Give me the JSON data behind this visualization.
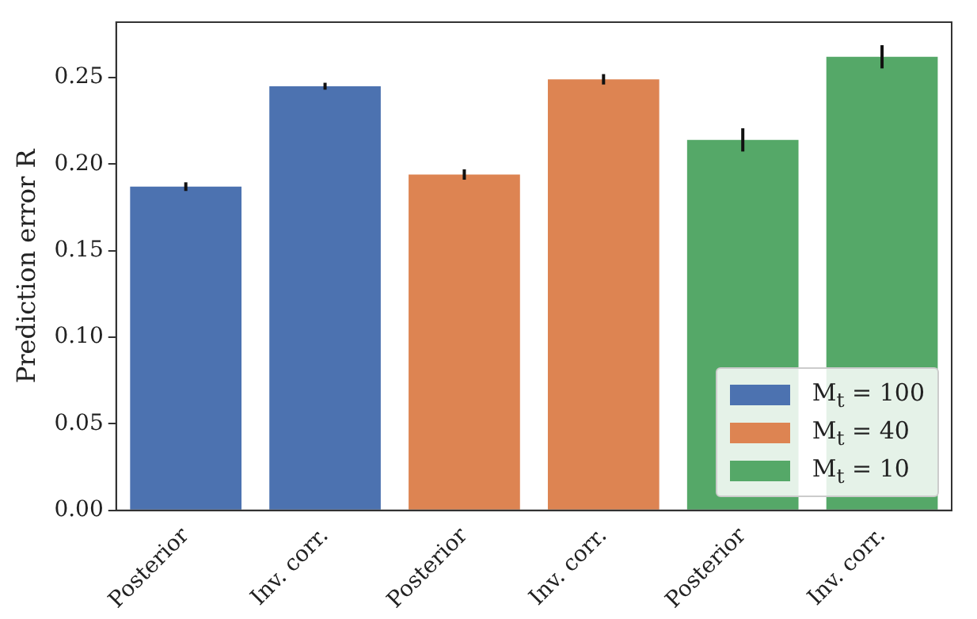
{
  "chart_data": {
    "type": "bar",
    "ylabel": "Prediction error R",
    "categories": [
      "Posterior",
      "Inv. corr.",
      "Posterior",
      "Inv. corr.",
      "Posterior",
      "Inv. corr."
    ],
    "series": [
      {
        "name": "M$_{t}$ = 100",
        "color": "#4c72b0",
        "values": [
          0.187,
          0.245,
          null,
          null,
          null,
          null
        ],
        "errors": [
          0.0025,
          0.002,
          null,
          null,
          null,
          null
        ]
      },
      {
        "name": "M$_{t}$ = 40",
        "color": "#dd8452",
        "values": [
          null,
          null,
          0.194,
          0.249,
          null,
          null
        ],
        "errors": [
          null,
          null,
          0.003,
          0.003,
          null,
          null
        ]
      },
      {
        "name": "M$_{t}$ = 10",
        "color": "#55a868",
        "values": [
          null,
          null,
          null,
          null,
          0.214,
          0.262
        ],
        "errors": [
          null,
          null,
          null,
          null,
          0.0067,
          0.0067
        ]
      }
    ],
    "ylim": [
      0,
      0.282
    ],
    "yticks": [
      {
        "value": 0,
        "label": "0.00"
      },
      {
        "value": 0.05,
        "label": "0.05"
      },
      {
        "value": 0.1,
        "label": "0.10"
      },
      {
        "value": 0.15,
        "label": "0.15"
      },
      {
        "value": 0.2,
        "label": "0.20"
      },
      {
        "value": 0.25,
        "label": "0.25"
      }
    ],
    "grid": false,
    "legend": "bottom right"
  }
}
